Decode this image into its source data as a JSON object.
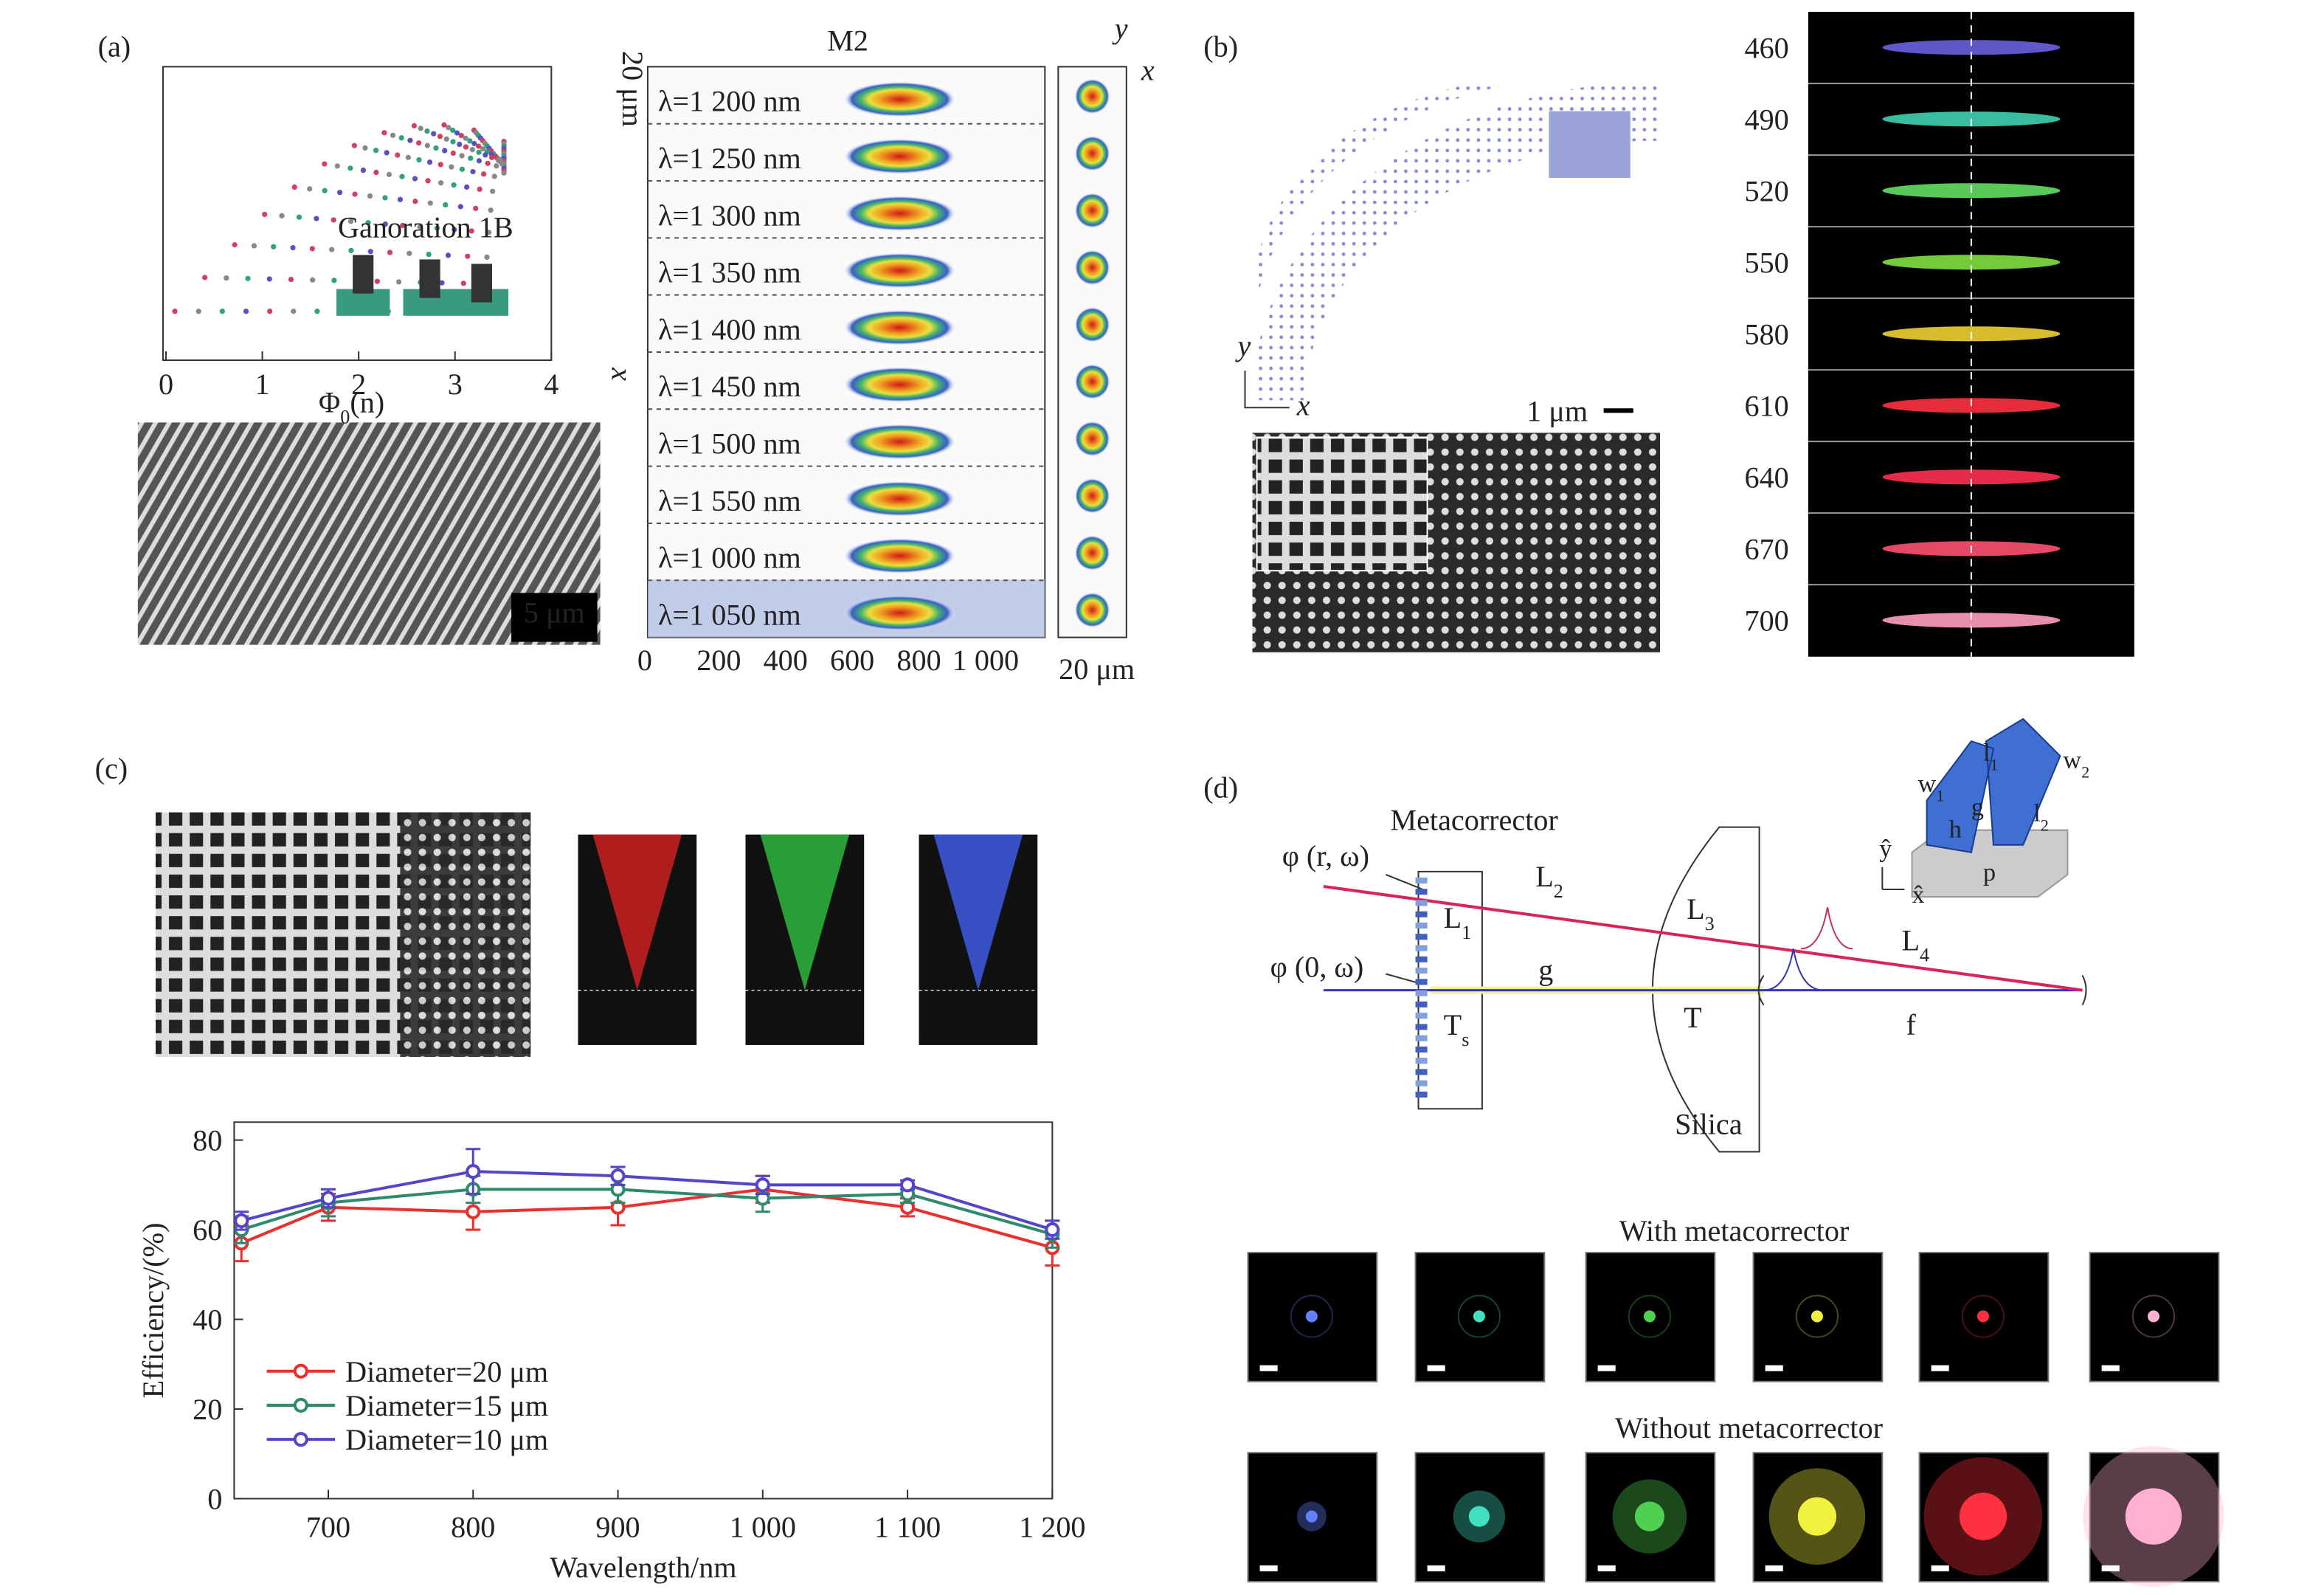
{
  "panel_a": {
    "label": "(a)",
    "plot": {
      "xticks": [
        "0",
        "1",
        "2",
        "3",
        "4"
      ],
      "xlabel": {
        "text": "Φ",
        "sub": "0",
        "tail": "(n)"
      },
      "legend": "Ganoration 1B"
    },
    "sem_scale": "5 μm",
    "map": {
      "title": "M2",
      "scale_y": "20 μm",
      "axis_x": "x",
      "rows": [
        "λ=1 200 nm",
        "λ=1 250 nm",
        "λ=1 300 nm",
        "λ=1 350 nm",
        "λ=1 400 nm",
        "λ=1 450 nm",
        "λ=1 500 nm",
        "λ=1 550 nm",
        "λ=1 000 nm",
        "λ=1 050 nm"
      ],
      "xticks": [
        "0",
        "200",
        "400",
        "600",
        "800",
        "1 000"
      ],
      "inset_axes": [
        "y",
        "x"
      ],
      "inset_scale": "20 μm"
    }
  },
  "panel_b": {
    "label": "(b)",
    "axes": [
      "y",
      "x"
    ],
    "scale": "1 μm",
    "wavelengths": [
      "460",
      "490",
      "520",
      "550",
      "580",
      "610",
      "640",
      "670",
      "700"
    ]
  },
  "panel_c": {
    "label": "(c)"
  },
  "chart_data": {
    "type": "line",
    "xlabel": "Wavelength/nm",
    "ylabel": "Efficiency/(%)",
    "x": [
      640,
      700,
      800,
      900,
      1000,
      1100,
      1200
    ],
    "series": [
      {
        "name": "Diameter=20 μm",
        "color": "#e8312f",
        "values": [
          57,
          65,
          64,
          65,
          69,
          65,
          56
        ],
        "errors": [
          4,
          3,
          4,
          4,
          3,
          2,
          4
        ]
      },
      {
        "name": "Diameter=15 μm",
        "color": "#2e8a6e",
        "values": [
          60,
          66,
          69,
          69,
          67,
          68,
          59
        ],
        "errors": [
          3,
          3,
          3,
          3,
          3,
          2,
          3
        ]
      },
      {
        "name": "Diameter=10 μm",
        "color": "#5545c8",
        "values": [
          62,
          67,
          73,
          72,
          70,
          70,
          60
        ],
        "errors": [
          2,
          2,
          5,
          2,
          2,
          1,
          2
        ]
      }
    ],
    "xlim": [
      635,
      1200
    ],
    "ylim": [
      0,
      84
    ],
    "xticks": [
      700,
      800,
      900,
      {
        "value": 1000,
        "label": "1 000"
      },
      {
        "value": 1100,
        "label": "1 100"
      },
      {
        "value": 1200,
        "label": "1 200"
      }
    ],
    "yticks": [
      0,
      20,
      40,
      60,
      80
    ],
    "grid": false,
    "legend": "lower left"
  },
  "panel_d": {
    "label": "(d)",
    "metacorrector": "Metacorrector",
    "phi_r": "φ (r, ω)",
    "phi_0": "φ (0, ω)",
    "labels": [
      {
        "text": "L",
        "sub": "2"
      },
      {
        "text": "L",
        "sub": "1"
      },
      {
        "text": "L",
        "sub": "3"
      },
      {
        "text": "L",
        "sub": "4"
      },
      {
        "text": "g"
      },
      {
        "text": "T",
        "sub": "s"
      },
      {
        "text": "T"
      },
      {
        "text": "f"
      },
      {
        "text": "Silica"
      }
    ],
    "inset": [
      {
        "text": "w",
        "sub": "1"
      },
      {
        "text": "l",
        "sub": "1"
      },
      {
        "text": "w",
        "sub": "2"
      },
      {
        "text": "g"
      },
      {
        "text": "h"
      },
      {
        "text": "l",
        "sub": "2"
      },
      {
        "text": "p"
      },
      {
        "text": "ŷ"
      },
      {
        "text": "x̂"
      }
    ],
    "with": "With metacorrector",
    "without": "Without metacorrector"
  }
}
